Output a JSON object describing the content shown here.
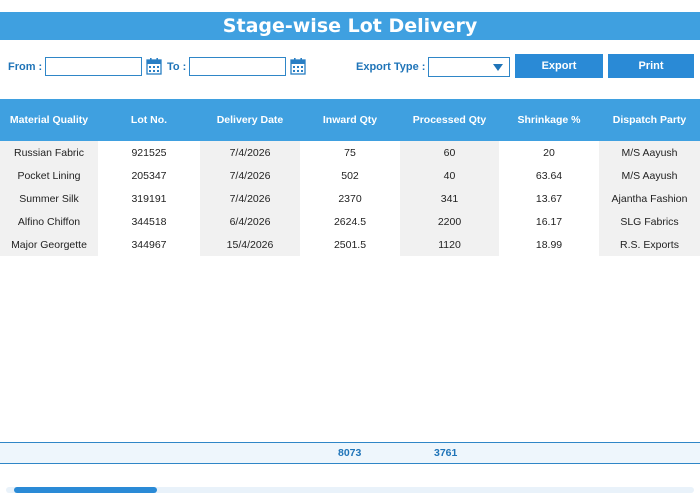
{
  "title": "Stage-wise Lot Delivery",
  "filters": {
    "from_label": "From :",
    "from_value": "",
    "to_label": "To :",
    "to_value": "",
    "export_type_label": "Export Type :",
    "export_type_value": ""
  },
  "buttons": {
    "export": "Export",
    "print": "Print"
  },
  "table": {
    "headers": [
      "Material Quality",
      "Lot No.",
      "Delivery Date",
      "Inward Qty",
      "Processed Qty",
      "Shrinkage %",
      "Dispatch Party"
    ],
    "rows": [
      [
        "Russian Fabric",
        "921525",
        "7/4/2026",
        "75",
        "60",
        "20",
        "M/S Aayush"
      ],
      [
        "Pocket Lining",
        "205347",
        "7/4/2026",
        "502",
        "40",
        "63.64",
        "M/S Aayush"
      ],
      [
        "Summer Silk",
        "319191",
        "7/4/2026",
        "2370",
        "341",
        "13.67",
        "Ajantha Fashion"
      ],
      [
        "Alfino Chiffon",
        "344518",
        "6/4/2026",
        "2624.5",
        "2200",
        "16.17",
        "SLG Fabrics"
      ],
      [
        "Major Georgette",
        "344967",
        "15/4/2026",
        "2501.5",
        "1120",
        "18.99",
        "R.S. Exports"
      ]
    ]
  },
  "totals": {
    "inward_qty": "8073",
    "processed_qty": "3761"
  },
  "colors": {
    "accent": "#3fa0e0",
    "button": "#2a8ad6",
    "label": "#1f74b8"
  },
  "icons": {
    "calendar": "calendar-icon",
    "dropdown": "chevron-down-icon"
  },
  "scrollbar": {
    "position_fraction": 0.0,
    "visible_fraction": 0.21
  }
}
